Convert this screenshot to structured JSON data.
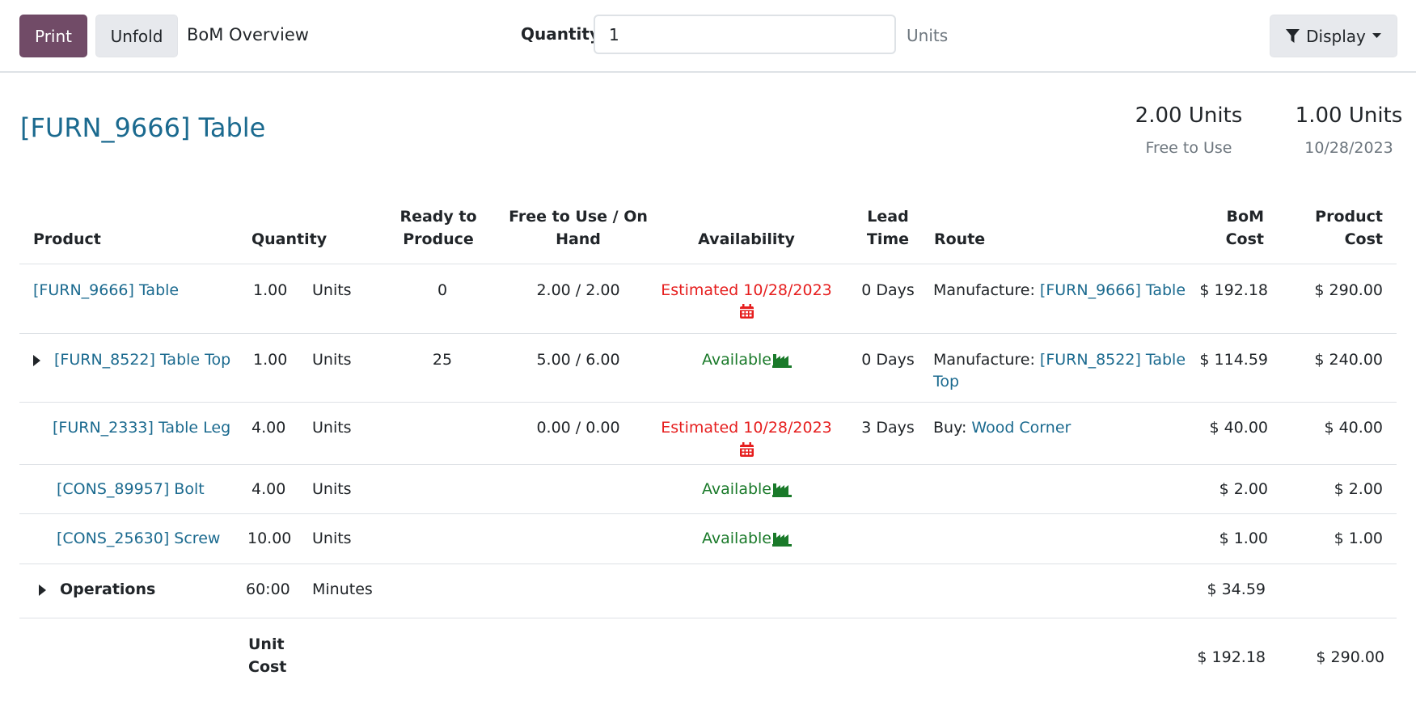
{
  "toolbar": {
    "print_label": "Print",
    "unfold_label": "Unfold",
    "view_title": "BoM Overview",
    "quantity_label": "Quantity",
    "quantity_value": "1",
    "quantity_unit": "Units",
    "display_label": "Display"
  },
  "header": {
    "product_title": "[FURN_9666] Table",
    "free_to_use_value": "2.00 Units",
    "free_to_use_label": "Free to Use",
    "forecast_value": "1.00 Units",
    "forecast_date": "10/28/2023"
  },
  "columns": {
    "product": "Product",
    "quantity": "Quantity",
    "ready_line1": "Ready to",
    "ready_line2": "Produce",
    "free_line1": "Free to Use / On",
    "free_line2": "Hand",
    "availability": "Availability",
    "lead_line1": "Lead",
    "lead_line2": "Time",
    "route": "Route",
    "bom_line1": "BoM",
    "bom_line2": "Cost",
    "prod_line1": "Product",
    "prod_line2": "Cost"
  },
  "rows": [
    {
      "product": "[FURN_9666] Table",
      "quantity": "1.00",
      "uom": "Units",
      "ready": "0",
      "free_on_hand": "2.00 / 2.00",
      "availability": "Estimated 10/28/2023",
      "lead_time": "0 Days",
      "route_prefix": "Manufacture:",
      "route_link": "[FURN_9666] Table",
      "route_link_cont": "",
      "bom_cost": "$ 192.18",
      "product_cost": "$ 290.00"
    },
    {
      "product": "[FURN_8522] Table Top",
      "quantity": "1.00",
      "uom": "Units",
      "ready": "25",
      "free_on_hand": "5.00 / 6.00",
      "availability": "Available",
      "lead_time": "0 Days",
      "route_prefix": "Manufacture:",
      "route_link": "[FURN_8522] Table",
      "route_link_cont": "Top",
      "bom_cost": "$ 114.59",
      "product_cost": "$ 240.00"
    },
    {
      "product": "[FURN_2333] Table Leg",
      "quantity": "4.00",
      "uom": "Units",
      "ready": "",
      "free_on_hand": "0.00 / 0.00",
      "availability": "Estimated 10/28/2023",
      "lead_time": "3 Days",
      "route_prefix": "Buy:",
      "route_link": "Wood Corner",
      "route_link_cont": "",
      "bom_cost": "$ 40.00",
      "product_cost": "$ 40.00"
    },
    {
      "product": "[CONS_89957] Bolt",
      "quantity": "4.00",
      "uom": "Units",
      "availability": "Available",
      "bom_cost": "$ 2.00",
      "product_cost": "$ 2.00"
    },
    {
      "product": "[CONS_25630] Screw",
      "quantity": "10.00",
      "uom": "Units",
      "availability": "Available",
      "bom_cost": "$ 1.00",
      "product_cost": "$ 1.00"
    }
  ],
  "operations": {
    "label": "Operations",
    "duration": "60:00",
    "unit": "Minutes",
    "bom_cost": "$ 34.59"
  },
  "totals": {
    "label_line1": "Unit",
    "label_line2": "Cost",
    "bom_cost": "$ 192.18",
    "product_cost": "$ 290.00"
  },
  "colors": {
    "primary": "#714b67",
    "link": "#1b6a8f",
    "late": "#e61e1e",
    "available": "#1a7a2a"
  }
}
